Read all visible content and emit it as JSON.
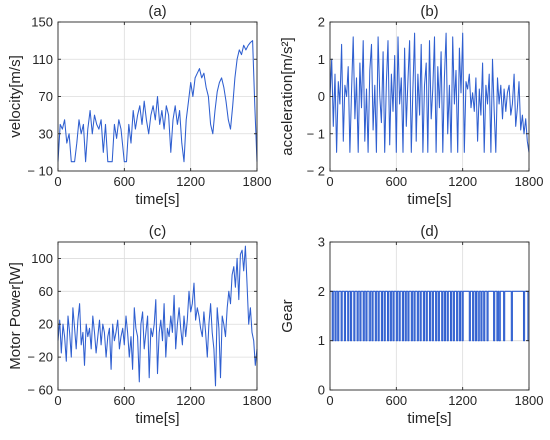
{
  "colors": {
    "series": "#2f5fd0",
    "background": "#ffffff",
    "axis": "#262626",
    "grid": "#dcdcdc"
  },
  "chart_data": [
    {
      "id": "a",
      "type": "line",
      "title": "(a)",
      "xlabel": "time[s]",
      "ylabel": "velocity[m/s]",
      "xlim": [
        0,
        1800
      ],
      "ylim": [
        -10,
        150
      ],
      "xticks": [
        0,
        600,
        1200,
        1800
      ],
      "yticks": [
        -10,
        30,
        70,
        110,
        150
      ],
      "xtick_labels": [
        "0",
        "600",
        "1200",
        "1800"
      ],
      "ytick_labels": [
        "− 10",
        "30",
        "70",
        "110",
        "150"
      ],
      "grid": true,
      "series": [
        {
          "x": [
            0,
            20,
            40,
            60,
            80,
            100,
            120,
            140,
            150,
            170,
            190,
            210,
            230,
            250,
            270,
            290,
            310,
            330,
            350,
            370,
            390,
            410,
            430,
            450,
            470,
            490,
            510,
            530,
            550,
            570,
            600,
            620,
            640,
            660,
            680,
            700,
            720,
            740,
            760,
            780,
            800,
            820,
            840,
            860,
            880,
            900,
            920,
            940,
            960,
            980,
            1000,
            1020,
            1040,
            1060,
            1080,
            1100,
            1120,
            1140,
            1160,
            1180,
            1200,
            1220,
            1240,
            1260,
            1280,
            1300,
            1320,
            1340,
            1360,
            1380,
            1400,
            1420,
            1440,
            1460,
            1480,
            1500,
            1520,
            1540,
            1560,
            1580,
            1600,
            1620,
            1640,
            1660,
            1680,
            1700,
            1720,
            1740,
            1760,
            1780,
            1800
          ],
          "values": [
            0,
            40,
            35,
            45,
            20,
            30,
            0,
            0,
            0,
            20,
            45,
            30,
            40,
            0,
            35,
            55,
            30,
            50,
            40,
            35,
            45,
            10,
            40,
            0,
            0,
            0,
            40,
            25,
            45,
            35,
            0,
            0,
            40,
            20,
            55,
            35,
            50,
            60,
            40,
            65,
            45,
            30,
            50,
            60,
            45,
            70,
            40,
            55,
            35,
            60,
            50,
            10,
            45,
            60,
            40,
            55,
            20,
            0,
            45,
            65,
            85,
            70,
            90,
            95,
            100,
            90,
            95,
            80,
            70,
            40,
            30,
            55,
            75,
            85,
            90,
            80,
            65,
            45,
            35,
            60,
            90,
            110,
            120,
            115,
            125,
            120,
            125,
            128,
            130,
            60,
            0
          ]
        }
      ]
    },
    {
      "id": "b",
      "type": "line",
      "title": "(b)",
      "xlabel": "time[s]",
      "ylabel": "acceleration[m/s²]",
      "xlim": [
        0,
        1800
      ],
      "ylim": [
        -2,
        2
      ],
      "xticks": [
        0,
        600,
        1200,
        1800
      ],
      "yticks": [
        -2,
        -1,
        0,
        1,
        2
      ],
      "xtick_labels": [
        "0",
        "600",
        "1200",
        "1800"
      ],
      "ytick_labels": [
        "− 2",
        "− 1",
        "0",
        "1",
        "2"
      ],
      "grid": true,
      "series": [
        {
          "x": [
            0,
            15,
            30,
            45,
            60,
            75,
            90,
            105,
            120,
            135,
            150,
            165,
            180,
            195,
            210,
            225,
            240,
            255,
            270,
            285,
            300,
            315,
            330,
            345,
            360,
            375,
            390,
            405,
            420,
            435,
            450,
            465,
            480,
            495,
            510,
            525,
            540,
            555,
            570,
            585,
            600,
            615,
            630,
            645,
            660,
            675,
            690,
            705,
            720,
            735,
            750,
            765,
            780,
            795,
            810,
            825,
            840,
            855,
            870,
            885,
            900,
            915,
            930,
            945,
            960,
            975,
            990,
            1005,
            1020,
            1035,
            1050,
            1065,
            1080,
            1095,
            1110,
            1125,
            1140,
            1155,
            1170,
            1185,
            1200,
            1215,
            1230,
            1245,
            1260,
            1275,
            1290,
            1305,
            1320,
            1335,
            1350,
            1365,
            1380,
            1395,
            1410,
            1425,
            1440,
            1455,
            1470,
            1485,
            1500,
            1515,
            1530,
            1545,
            1560,
            1575,
            1590,
            1605,
            1620,
            1635,
            1650,
            1665,
            1680,
            1695,
            1710,
            1725,
            1740,
            1755,
            1770,
            1785,
            1800
          ],
          "values": [
            0,
            1.0,
            -0.8,
            0.6,
            -1.5,
            0.4,
            -0.2,
            1.4,
            -1.2,
            0.3,
            0,
            0.8,
            -1.5,
            0.2,
            1.6,
            -0.6,
            0.5,
            -1.5,
            0.9,
            -0.3,
            1.5,
            -1.2,
            0.2,
            -1.5,
            0.7,
            1.4,
            -0.9,
            0.3,
            -1.5,
            1.6,
            0,
            -0.7,
            1.2,
            -1.5,
            0.4,
            1.5,
            -1.3,
            0.6,
            -0.4,
            1.1,
            -1.5,
            1.6,
            -0.2,
            0.5,
            -1.5,
            1.3,
            -0.8,
            0.4,
            1.5,
            -1.5,
            0.2,
            1.7,
            -1.2,
            0.6,
            -0.5,
            1.4,
            -1.5,
            0.3,
            0.9,
            -1.5,
            1.5,
            -0.6,
            0.2,
            1.6,
            -1.5,
            0.8,
            -0.3,
            1.2,
            -1.5,
            0.5,
            1.7,
            -1.0,
            0.3,
            -1.5,
            1.6,
            -0.2,
            0.7,
            -1.5,
            1.3,
            0.1,
            1.7,
            -1.5,
            0.4,
            0.2,
            0.6,
            -0.3,
            0.1,
            -0.4,
            0.5,
            -1.2,
            0.2,
            -0.5,
            0.9,
            -1.5,
            0.3,
            -0.2,
            0.6,
            -1.5,
            1.0,
            -0.4,
            -1.5,
            0.5,
            -0.2,
            0.3,
            -0.6,
            0.2,
            -0.4,
            0.1,
            0.3,
            -0.5,
            -0.2,
            0.6,
            -0.8,
            -0.3,
            0.4,
            -0.9,
            -0.5,
            -1.0,
            -0.6,
            -1.2,
            -1.5
          ]
        }
      ]
    },
    {
      "id": "c",
      "type": "line",
      "title": "(c)",
      "xlabel": "time[s]",
      "ylabel": "Motor Power[W]",
      "xlim": [
        0,
        1800
      ],
      "ylim": [
        -60,
        120
      ],
      "xticks": [
        0,
        600,
        1200,
        1800
      ],
      "yticks": [
        -60,
        -20,
        20,
        60,
        100
      ],
      "xtick_labels": [
        "0",
        "600",
        "1200",
        "1800"
      ],
      "ytick_labels": [
        "− 60",
        "− 20",
        "20",
        "60",
        "100"
      ],
      "grid": true,
      "series": [
        {
          "x": [
            0,
            15,
            30,
            45,
            60,
            75,
            90,
            105,
            120,
            135,
            150,
            165,
            180,
            195,
            210,
            225,
            240,
            255,
            270,
            285,
            300,
            315,
            330,
            345,
            360,
            375,
            390,
            405,
            420,
            435,
            450,
            465,
            480,
            495,
            510,
            525,
            540,
            555,
            570,
            585,
            600,
            615,
            630,
            645,
            660,
            675,
            690,
            705,
            720,
            735,
            750,
            765,
            780,
            795,
            810,
            825,
            840,
            855,
            870,
            885,
            900,
            915,
            930,
            945,
            960,
            975,
            990,
            1005,
            1020,
            1035,
            1050,
            1065,
            1080,
            1095,
            1110,
            1125,
            1140,
            1155,
            1170,
            1185,
            1200,
            1215,
            1230,
            1245,
            1260,
            1275,
            1290,
            1305,
            1320,
            1335,
            1350,
            1365,
            1380,
            1395,
            1410,
            1425,
            1440,
            1455,
            1470,
            1485,
            1500,
            1515,
            1530,
            1545,
            1560,
            1575,
            1590,
            1605,
            1620,
            1635,
            1650,
            1665,
            1680,
            1695,
            1710,
            1725,
            1740,
            1755,
            1770,
            1785,
            1800
          ],
          "values": [
            0,
            25,
            -15,
            20,
            5,
            -25,
            30,
            10,
            -20,
            40,
            15,
            -10,
            25,
            45,
            -5,
            10,
            -30,
            20,
            5,
            15,
            -10,
            30,
            10,
            -15,
            5,
            25,
            -5,
            20,
            10,
            -20,
            5,
            15,
            -35,
            20,
            0,
            10,
            25,
            -10,
            5,
            15,
            -5,
            30,
            10,
            -20,
            5,
            -35,
            40,
            15,
            5,
            -50,
            20,
            35,
            -10,
            10,
            30,
            -45,
            15,
            5,
            20,
            50,
            -40,
            10,
            25,
            0,
            45,
            -20,
            15,
            5,
            30,
            10,
            55,
            -10,
            20,
            40,
            15,
            -5,
            30,
            5,
            25,
            60,
            35,
            45,
            70,
            25,
            40,
            30,
            15,
            5,
            35,
            10,
            -20,
            20,
            45,
            10,
            -10,
            -55,
            40,
            15,
            -45,
            30,
            20,
            5,
            40,
            60,
            45,
            80,
            90,
            65,
            100,
            50,
            105,
            110,
            85,
            115,
            70,
            20,
            40,
            10,
            0,
            -30,
            -10
          ]
        }
      ]
    },
    {
      "id": "d",
      "type": "line",
      "title": "(d)",
      "xlabel": "time[s]",
      "ylabel": "Gear",
      "xlim": [
        0,
        1800
      ],
      "ylim": [
        0,
        3
      ],
      "xticks": [
        0,
        600,
        1200,
        1800
      ],
      "yticks": [
        0,
        1,
        2,
        3
      ],
      "xtick_labels": [
        "0",
        "600",
        "1200",
        "1800"
      ],
      "ytick_labels": [
        "0",
        "1",
        "2",
        "3"
      ],
      "grid": true,
      "series": [
        {
          "step": true,
          "x": [
            0,
            20,
            30,
            45,
            55,
            70,
            80,
            100,
            110,
            130,
            140,
            160,
            170,
            185,
            195,
            215,
            225,
            245,
            255,
            270,
            280,
            300,
            310,
            325,
            335,
            355,
            365,
            380,
            390,
            410,
            420,
            435,
            445,
            465,
            475,
            490,
            500,
            520,
            530,
            545,
            555,
            570,
            580,
            600,
            610,
            625,
            635,
            655,
            665,
            680,
            690,
            705,
            715,
            735,
            745,
            760,
            770,
            790,
            800,
            815,
            825,
            845,
            855,
            870,
            880,
            900,
            910,
            925,
            935,
            955,
            965,
            980,
            990,
            1010,
            1020,
            1035,
            1045,
            1060,
            1070,
            1090,
            1100,
            1115,
            1125,
            1145,
            1155,
            1170,
            1180,
            1195,
            1205,
            1260,
            1270,
            1290,
            1300,
            1315,
            1325,
            1340,
            1350,
            1365,
            1375,
            1390,
            1400,
            1420,
            1430,
            1480,
            1490,
            1510,
            1520,
            1530,
            1540,
            1570,
            1580,
            1640,
            1650,
            1750,
            1760,
            1790,
            1800
          ],
          "values": [
            2,
            1,
            2,
            1,
            2,
            1,
            2,
            1,
            2,
            1,
            2,
            1,
            2,
            1,
            2,
            1,
            2,
            1,
            2,
            1,
            2,
            1,
            2,
            1,
            2,
            1,
            2,
            1,
            2,
            1,
            2,
            1,
            2,
            1,
            2,
            1,
            2,
            1,
            2,
            1,
            2,
            1,
            2,
            1,
            2,
            1,
            2,
            1,
            2,
            1,
            2,
            1,
            2,
            1,
            2,
            1,
            2,
            1,
            2,
            1,
            2,
            1,
            2,
            1,
            2,
            1,
            2,
            1,
            2,
            1,
            2,
            1,
            2,
            1,
            2,
            1,
            2,
            1,
            2,
            1,
            2,
            1,
            2,
            1,
            2,
            1,
            2,
            1,
            2,
            1,
            2,
            1,
            2,
            1,
            2,
            1,
            2,
            1,
            2,
            1,
            2,
            1,
            2,
            1,
            2,
            1,
            2,
            1,
            2,
            1,
            2,
            1,
            2,
            1,
            2,
            1,
            1
          ]
        }
      ]
    }
  ]
}
